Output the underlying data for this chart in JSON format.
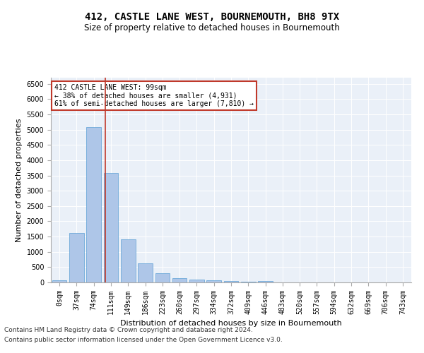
{
  "title_line1": "412, CASTLE LANE WEST, BOURNEMOUTH, BH8 9TX",
  "title_line2": "Size of property relative to detached houses in Bournemouth",
  "xlabel": "Distribution of detached houses by size in Bournemouth",
  "ylabel": "Number of detached properties",
  "bar_labels": [
    "0sqm",
    "37sqm",
    "74sqm",
    "111sqm",
    "149sqm",
    "186sqm",
    "223sqm",
    "260sqm",
    "297sqm",
    "334sqm",
    "372sqm",
    "409sqm",
    "446sqm",
    "483sqm",
    "520sqm",
    "557sqm",
    "594sqm",
    "632sqm",
    "669sqm",
    "706sqm",
    "743sqm"
  ],
  "bar_values": [
    75,
    1625,
    5075,
    3575,
    1400,
    625,
    300,
    150,
    90,
    60,
    50,
    25,
    50,
    0,
    0,
    0,
    0,
    0,
    0,
    0,
    0
  ],
  "bar_color": "#aec6e8",
  "bar_edge_color": "#5a9fd4",
  "vline_x": 2.68,
  "vline_color": "#c0392b",
  "annotation_text": "412 CASTLE LANE WEST: 99sqm\n← 38% of detached houses are smaller (4,931)\n61% of semi-detached houses are larger (7,810) →",
  "annotation_box_color": "#ffffff",
  "annotation_box_edge": "#c0392b",
  "ylim": [
    0,
    6700
  ],
  "yticks": [
    0,
    500,
    1000,
    1500,
    2000,
    2500,
    3000,
    3500,
    4000,
    4500,
    5000,
    5500,
    6000,
    6500
  ],
  "bg_color": "#eaf0f8",
  "footer_line1": "Contains HM Land Registry data © Crown copyright and database right 2024.",
  "footer_line2": "Contains public sector information licensed under the Open Government Licence v3.0.",
  "title_fontsize": 10,
  "subtitle_fontsize": 8.5,
  "axis_label_fontsize": 8,
  "tick_fontsize": 7,
  "footer_fontsize": 6.5
}
